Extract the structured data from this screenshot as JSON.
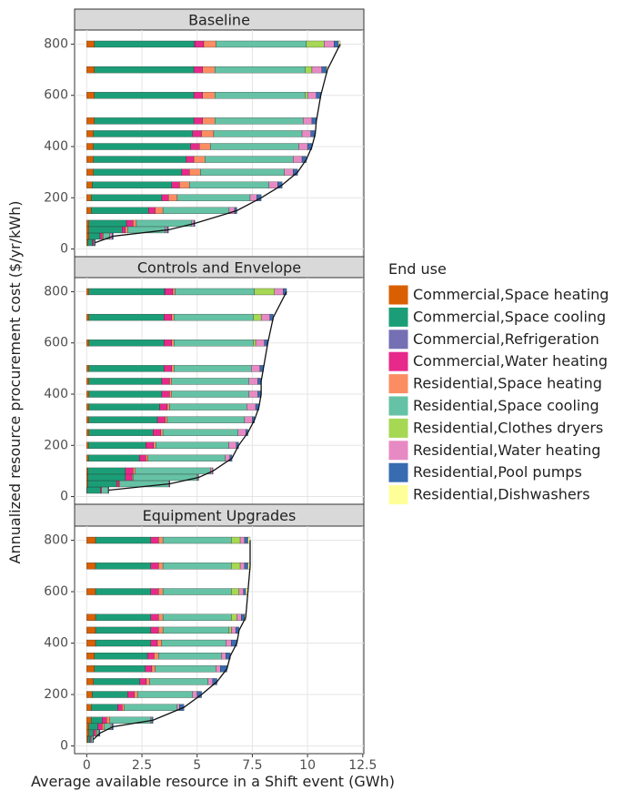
{
  "chart_data": {
    "type": "stacked-bar-horizontal",
    "xlabel": "Average available resource in a Shift event (GWh)",
    "ylabel": "Annualized resource procurement cost ($/yr/kWh)",
    "legend_title": "End use",
    "xlim": [
      -0.55,
      12.55
    ],
    "xticks": [
      0,
      2.5,
      5,
      7.5,
      10,
      12.5
    ],
    "ylim": [
      -30,
      855
    ],
    "yticks": [
      0,
      200,
      400,
      600,
      800
    ],
    "grid": true,
    "y": [
      25,
      50,
      75,
      100,
      150,
      200,
      250,
      300,
      350,
      400,
      450,
      500,
      600,
      700,
      800
    ],
    "series": [
      {
        "name": "Commercial,Space heating",
        "color": "#d95f02"
      },
      {
        "name": "Commercial,Space cooling",
        "color": "#1b9e77"
      },
      {
        "name": "Commercial,Refrigeration",
        "color": "#7570b3"
      },
      {
        "name": "Commercial,Water heating",
        "color": "#e7298a"
      },
      {
        "name": "Residential,Space heating",
        "color": "#fc8d62"
      },
      {
        "name": "Residential,Space cooling",
        "color": "#66c2a5"
      },
      {
        "name": "Residential,Clothes dryers",
        "color": "#a6d854"
      },
      {
        "name": "Residential,Water heating",
        "color": "#e78ac3"
      },
      {
        "name": "Residential,Pool pumps",
        "color": "#386cb0"
      },
      {
        "name": "Residential,Dishwashers",
        "color": "#ffff99"
      }
    ],
    "facets": [
      {
        "title": "Baseline",
        "values": [
          [
            0.05,
            0.1,
            0.1,
            0.1,
            0.2,
            0.2,
            0.25,
            0.3,
            0.3,
            0.3,
            0.3,
            0.35,
            0.35,
            0.35,
            0.35
          ],
          [
            0.2,
            0.5,
            1.5,
            1.7,
            2.6,
            3.2,
            3.6,
            4.0,
            4.2,
            4.4,
            4.5,
            4.5,
            4.5,
            4.5,
            4.5
          ],
          [
            0,
            0,
            0,
            0,
            0,
            0,
            0,
            0,
            0,
            0,
            0,
            0,
            0,
            0,
            0.05
          ],
          [
            0.05,
            0.1,
            0.15,
            0.3,
            0.3,
            0.3,
            0.35,
            0.35,
            0.35,
            0.4,
            0.4,
            0.4,
            0.4,
            0.4,
            0.4
          ],
          [
            0,
            0.05,
            0.1,
            0.15,
            0.35,
            0.4,
            0.45,
            0.5,
            0.5,
            0.5,
            0.55,
            0.55,
            0.55,
            0.55,
            0.55
          ],
          [
            0.05,
            0.3,
            1.7,
            2.5,
            3.0,
            3.3,
            3.6,
            3.8,
            4.0,
            4.0,
            4.0,
            4.0,
            4.1,
            4.1,
            4.1
          ],
          [
            0,
            0,
            0,
            0,
            0,
            0,
            0,
            0,
            0,
            0,
            0,
            0,
            0.1,
            0.3,
            0.8
          ],
          [
            0.02,
            0.1,
            0.1,
            0.1,
            0.25,
            0.3,
            0.4,
            0.4,
            0.4,
            0.4,
            0.4,
            0.4,
            0.4,
            0.45,
            0.45
          ],
          [
            0.02,
            0.05,
            0.05,
            0.05,
            0.1,
            0.2,
            0.2,
            0.2,
            0.2,
            0.2,
            0.2,
            0.2,
            0.2,
            0.2,
            0.2
          ],
          [
            0,
            0,
            0,
            0,
            0,
            0,
            0,
            0,
            0,
            0,
            0,
            0,
            0,
            0.05,
            0.08
          ]
        ]
      },
      {
        "title": "Controls and Envelope",
        "values": [
          [
            0.02,
            0.05,
            0.05,
            0.05,
            0.08,
            0.08,
            0.1,
            0.1,
            0.1,
            0.1,
            0.1,
            0.1,
            0.1,
            0.1,
            0.1
          ],
          [
            0.6,
            1.3,
            1.7,
            1.7,
            2.3,
            2.6,
            2.9,
            3.1,
            3.2,
            3.3,
            3.3,
            3.4,
            3.4,
            3.4,
            3.4
          ],
          [
            0,
            0,
            0,
            0,
            0,
            0,
            0,
            0,
            0,
            0,
            0,
            0,
            0,
            0,
            0.05
          ],
          [
            0.05,
            0.1,
            0.3,
            0.35,
            0.3,
            0.35,
            0.35,
            0.35,
            0.35,
            0.35,
            0.35,
            0.35,
            0.35,
            0.35,
            0.35
          ],
          [
            0,
            0.05,
            0.05,
            0.1,
            0.1,
            0.1,
            0.1,
            0.1,
            0.1,
            0.1,
            0.1,
            0.1,
            0.1,
            0.1,
            0.1
          ],
          [
            0.3,
            2.2,
            2.9,
            3.4,
            3.5,
            3.3,
            3.4,
            3.5,
            3.5,
            3.5,
            3.5,
            3.5,
            3.6,
            3.6,
            3.6
          ],
          [
            0,
            0,
            0,
            0,
            0,
            0,
            0,
            0,
            0,
            0,
            0,
            0,
            0.1,
            0.35,
            0.9
          ],
          [
            0.02,
            0.05,
            0.05,
            0.1,
            0.2,
            0.35,
            0.35,
            0.35,
            0.4,
            0.4,
            0.4,
            0.4,
            0.4,
            0.4,
            0.4
          ],
          [
            0.01,
            0.02,
            0.02,
            0.02,
            0.1,
            0.1,
            0.1,
            0.1,
            0.15,
            0.15,
            0.15,
            0.15,
            0.15,
            0.15,
            0.15
          ],
          [
            0,
            0,
            0,
            0,
            0,
            0,
            0,
            0,
            0,
            0,
            0,
            0,
            0,
            0,
            0
          ]
        ]
      },
      {
        "title": "Equipment Upgrades",
        "values": [
          [
            0.05,
            0.1,
            0.1,
            0.2,
            0.2,
            0.25,
            0.3,
            0.35,
            0.35,
            0.4,
            0.4,
            0.4,
            0.4,
            0.4,
            0.4
          ],
          [
            0.1,
            0.2,
            0.4,
            0.5,
            1.2,
            1.6,
            2.1,
            2.3,
            2.4,
            2.5,
            2.5,
            2.5,
            2.5,
            2.5,
            2.5
          ],
          [
            0,
            0,
            0,
            0,
            0,
            0,
            0,
            0,
            0,
            0,
            0,
            0,
            0,
            0,
            0
          ],
          [
            0.05,
            0.1,
            0.2,
            0.2,
            0.2,
            0.3,
            0.3,
            0.3,
            0.3,
            0.3,
            0.35,
            0.35,
            0.35,
            0.35,
            0.35
          ],
          [
            0,
            0.05,
            0.1,
            0.15,
            0.1,
            0.15,
            0.15,
            0.15,
            0.2,
            0.2,
            0.2,
            0.2,
            0.2,
            0.2,
            0.2
          ],
          [
            0.08,
            0.1,
            0.3,
            1.85,
            2.4,
            2.5,
            2.65,
            2.75,
            2.85,
            2.9,
            3.0,
            3.1,
            3.1,
            3.1,
            3.1
          ],
          [
            0,
            0,
            0,
            0,
            0,
            0,
            0,
            0,
            0,
            0,
            0.1,
            0.25,
            0.35,
            0.4,
            0.4
          ],
          [
            0.01,
            0.03,
            0.05,
            0.05,
            0.1,
            0.2,
            0.2,
            0.2,
            0.2,
            0.25,
            0.2,
            0.2,
            0.2,
            0.2,
            0.2
          ],
          [
            0.01,
            0.02,
            0.05,
            0.05,
            0.2,
            0.2,
            0.2,
            0.3,
            0.2,
            0.25,
            0.15,
            0.15,
            0.1,
            0.15,
            0.15
          ],
          [
            0,
            0,
            0,
            0,
            0,
            0,
            0,
            0,
            0,
            0,
            0,
            0.05,
            0.1,
            0.1,
            0.1
          ]
        ]
      }
    ]
  }
}
